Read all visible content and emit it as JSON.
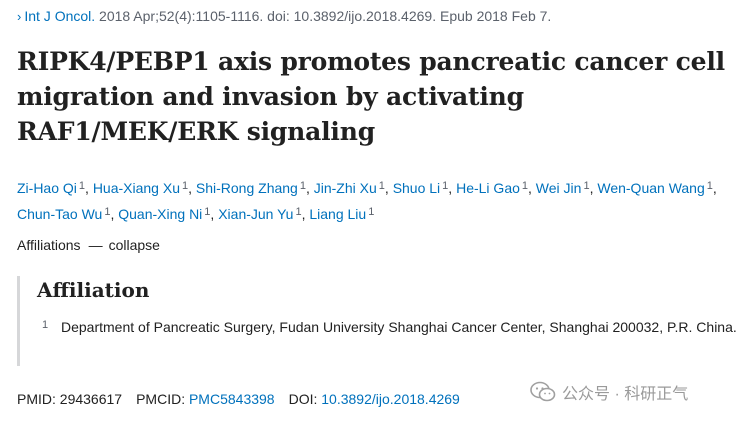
{
  "citation": {
    "chevron": "›",
    "journal": "Int J Oncol.",
    "details": "2018 Apr;52(4):1105-1116. doi: 10.3892/ijo.2018.4269. Epub 2018 Feb 7."
  },
  "title": "RIPK4/PEBP1 axis promotes pancreatic cancer cell migration and invasion by activating RAF1/MEK/ERK signaling",
  "authors": [
    {
      "name": "Zi-Hao Qi",
      "aff": "1"
    },
    {
      "name": "Hua-Xiang Xu",
      "aff": "1"
    },
    {
      "name": "Shi-Rong Zhang",
      "aff": "1"
    },
    {
      "name": "Jin-Zhi Xu",
      "aff": "1"
    },
    {
      "name": "Shuo Li",
      "aff": "1"
    },
    {
      "name": "He-Li Gao",
      "aff": "1"
    },
    {
      "name": "Wei Jin",
      "aff": "1"
    },
    {
      "name": "Wen-Quan Wang",
      "aff": "1"
    },
    {
      "name": "Chun-Tao Wu",
      "aff": "1"
    },
    {
      "name": "Quan-Xing Ni",
      "aff": "1"
    },
    {
      "name": "Xian-Jun Yu",
      "aff": "1"
    },
    {
      "name": "Liang Liu",
      "aff": "1"
    }
  ],
  "affiliations_toggle": {
    "label": "Affiliations",
    "dash": "—",
    "action": "collapse"
  },
  "affiliation_section": {
    "heading": "Affiliation",
    "number": "1",
    "text": "Department of Pancreatic Surgery, Fudan University Shanghai Cancer Center, Shanghai 200032, P.R. China."
  },
  "identifiers": {
    "pmid_label": "PMID:",
    "pmid": "29436617",
    "pmcid_label": "PMCID:",
    "pmcid": "PMC5843398",
    "doi_label": "DOI:",
    "doi": "10.3892/ijo.2018.4269"
  },
  "watermark": {
    "text": "公众号 · 科研正气",
    "icon": "wechat-icon"
  }
}
